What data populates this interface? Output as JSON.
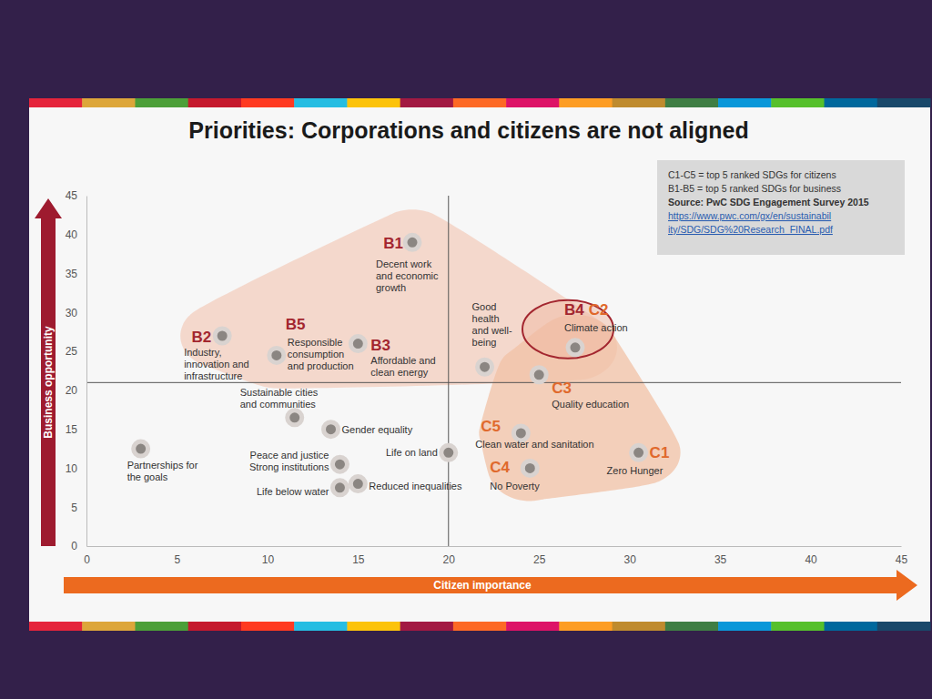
{
  "chart_data": {
    "type": "scatter",
    "title": "Priorities: Corporations and citizens are not aligned",
    "x_label": "Citizen importance",
    "y_label": "Business opportunity",
    "xlim": [
      0,
      45
    ],
    "ylim": [
      0,
      45
    ],
    "xticks": [
      0,
      5,
      10,
      15,
      20,
      25,
      30,
      35,
      40,
      45
    ],
    "yticks": [
      0,
      5,
      10,
      15,
      20,
      25,
      30,
      35,
      40,
      45
    ],
    "reference_lines": {
      "x": 20,
      "y": 21
    },
    "x": [
      3,
      7.5,
      10.5,
      15,
      18,
      22,
      27,
      25,
      11.5,
      13.5,
      14,
      14,
      15,
      20,
      24,
      24.5,
      30.5
    ],
    "values": [
      12.5,
      27,
      24.5,
      26,
      39,
      23,
      25.5,
      22,
      16.5,
      15,
      10.5,
      7.5,
      8,
      12,
      14.5,
      10,
      12
    ],
    "point_codes": [
      null,
      [
        "B2"
      ],
      [
        "B5"
      ],
      [
        "B3"
      ],
      [
        "B1"
      ],
      null,
      [
        "B4",
        "C2"
      ],
      [
        "C3"
      ],
      null,
      null,
      null,
      null,
      null,
      null,
      [
        "C5"
      ],
      [
        "C4"
      ],
      [
        "C1"
      ]
    ],
    "point_labels": [
      [
        "Partnerships for",
        "the goals"
      ],
      [
        "Industry,",
        "innovation and",
        "infrastructure"
      ],
      [
        "Responsible",
        "consumption",
        "and production"
      ],
      [
        "Affordable and",
        "clean energy"
      ],
      [
        "Decent work",
        "and economic",
        "growth"
      ],
      [
        "Good",
        "health",
        "and well-",
        "being"
      ],
      [
        "Climate action"
      ],
      [
        "Quality education"
      ],
      [
        "Sustainable cities",
        "and communities"
      ],
      [
        "Gender equality"
      ],
      [
        "Peace and justice",
        "Strong institutions"
      ],
      [
        "Life below water"
      ],
      [
        "Reduced inequalities"
      ],
      [
        "Life on land"
      ],
      [
        "Clean water and sanitation"
      ],
      [
        "No Poverty"
      ],
      [
        "Zero Hunger"
      ]
    ],
    "notes": [
      "C1-C5 = top 5 ranked SDGs for citizens",
      "B1-B5 = top 5 ranked SDGs for business",
      "Source: PwC SDG Engagement Survey 2015"
    ],
    "source_link": [
      "https://www.pwc.com/gx/en/sustainabil",
      "ity/SDG/SDG%20Research_FINAL.pdf"
    ]
  }
}
